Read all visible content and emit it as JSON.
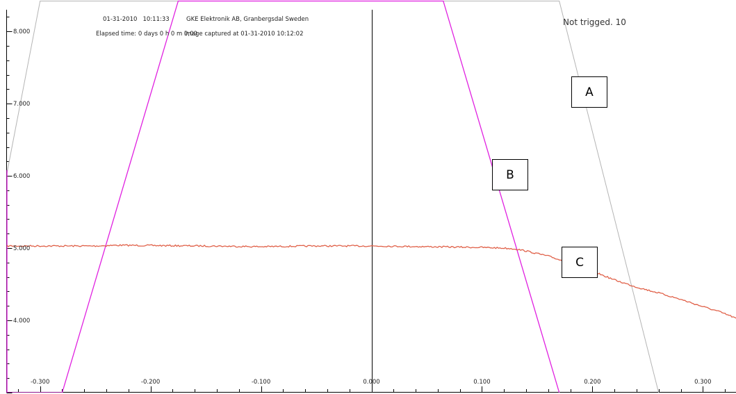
{
  "header": {
    "timestamp": "01-31-2010   10:11:33",
    "company": "GKE Elektronik AB, Granbergsdal Sweden",
    "elapsed": "Elapsed time: 0 days 0 h 0 m 0,00",
    "captured": "Image captured at 01-31-2010 10:12:02",
    "status": "Not trigged. 10"
  },
  "annotations": {
    "a": "A",
    "b": "B",
    "c": "C"
  },
  "colors": {
    "trace_a": "#b4b4b4",
    "trace_b": "#e020e0",
    "trace_c": "#e06048",
    "axis": "#000000"
  },
  "chart_data": {
    "type": "line",
    "title": "",
    "xlabel": "",
    "ylabel": "",
    "xlim": [
      -0.33,
      0.33
    ],
    "ylim": [
      3.0,
      8.3
    ],
    "x_ticks": [
      "-0.300",
      "-0.200",
      "-0.100",
      "0.000",
      "0.100",
      "0.200",
      "0.300"
    ],
    "x_tick_values": [
      -0.3,
      -0.2,
      -0.1,
      0.0,
      0.1,
      0.2,
      0.3
    ],
    "y_ticks": [
      "4.000",
      "5.000",
      "6.000",
      "7.000",
      "8.000"
    ],
    "y_tick_values": [
      4,
      5,
      6,
      7,
      8
    ],
    "grid": false,
    "series": [
      {
        "name": "A",
        "color": "#b4b4b4",
        "points": [
          [
            -0.33,
            6.04
          ],
          [
            -0.3,
            8.42
          ],
          [
            0.17,
            8.42
          ],
          [
            0.26,
            3.0
          ]
        ]
      },
      {
        "name": "B",
        "color": "#e020e0",
        "points": [
          [
            -0.33,
            6.08
          ],
          [
            -0.33,
            3.0
          ],
          [
            -0.28,
            3.0
          ],
          [
            -0.175,
            8.42
          ],
          [
            0.065,
            8.42
          ],
          [
            0.17,
            3.0
          ]
        ]
      },
      {
        "name": "C",
        "color": "#e06048",
        "points": [
          [
            -0.33,
            5.03
          ],
          [
            -0.25,
            5.03
          ],
          [
            -0.23,
            5.04
          ],
          [
            -0.15,
            5.03
          ],
          [
            -0.1,
            5.02
          ],
          [
            -0.05,
            5.03
          ],
          [
            0.0,
            5.03
          ],
          [
            0.05,
            5.02
          ],
          [
            0.1,
            5.01
          ],
          [
            0.12,
            5.0
          ],
          [
            0.13,
            4.99
          ],
          [
            0.14,
            4.96
          ],
          [
            0.16,
            4.89
          ],
          [
            0.18,
            4.79
          ],
          [
            0.2,
            4.68
          ],
          [
            0.22,
            4.56
          ],
          [
            0.24,
            4.46
          ],
          [
            0.26,
            4.38
          ],
          [
            0.28,
            4.29
          ],
          [
            0.3,
            4.19
          ],
          [
            0.315,
            4.12
          ],
          [
            0.33,
            4.03
          ]
        ]
      }
    ]
  }
}
